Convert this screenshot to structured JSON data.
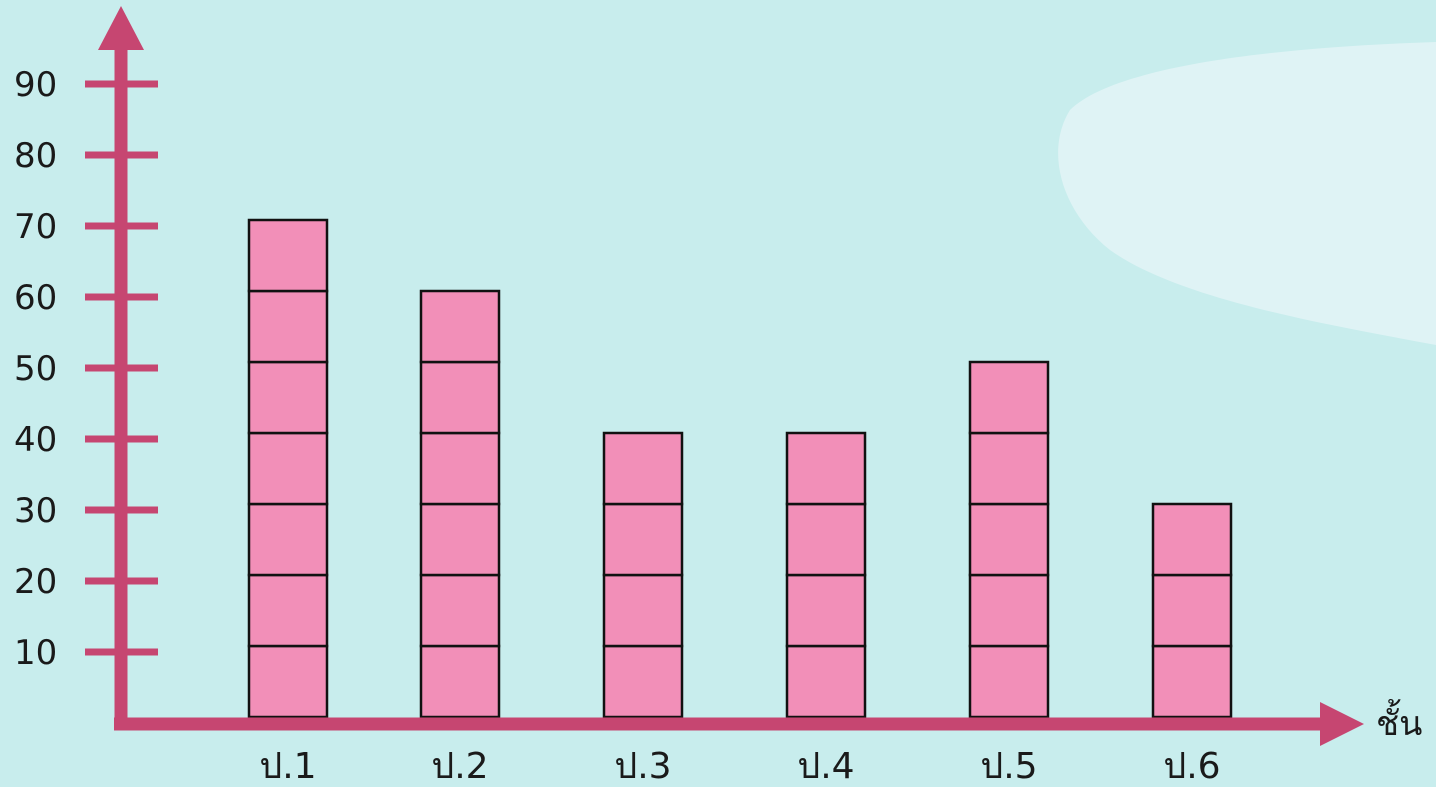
{
  "colors": {
    "background": "#c8eded",
    "cloud": "#dff3f5",
    "axis": "#c64671",
    "bar_fill": "#f28fb8",
    "bar_stroke": "#111111"
  },
  "chart_data": {
    "type": "bar",
    "style": "pictograph-stacked-blocks",
    "unit_per_block": 10,
    "title": "",
    "xlabel": "ชั้น",
    "ylabel": "",
    "categories": [
      "ป.1",
      "ป.2",
      "ป.3",
      "ป.4",
      "ป.5",
      "ป.6"
    ],
    "values": [
      70,
      60,
      40,
      40,
      50,
      30
    ],
    "ylim": [
      0,
      100
    ],
    "yticks": [
      10,
      20,
      30,
      40,
      50,
      60,
      70,
      80,
      90
    ],
    "ytick_labels": [
      "10",
      "20",
      "30",
      "40",
      "50",
      "60",
      "70",
      "80",
      "90"
    ],
    "grid": false,
    "legend": "none"
  }
}
